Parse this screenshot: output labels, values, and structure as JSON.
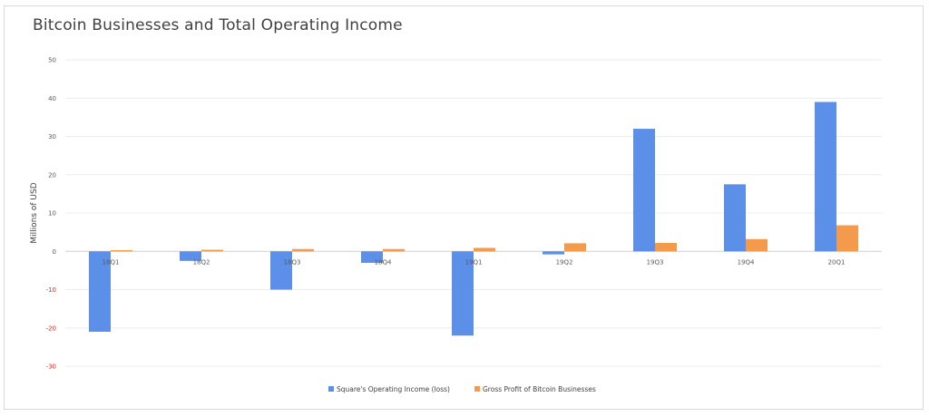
{
  "chart_data": {
    "type": "bar",
    "title": "Bitcoin Businesses and Total Operating Income",
    "xlabel": "",
    "ylabel": "Millions of USD",
    "ylim": [
      -30,
      50
    ],
    "yticks": [
      50,
      40,
      30,
      20,
      10,
      0,
      -10,
      -20,
      -30
    ],
    "grid": true,
    "legend_position": "bottom",
    "categories": [
      "18Q1",
      "18Q2",
      "18Q3",
      "18Q4",
      "19Q1",
      "19Q2",
      "19Q3",
      "19Q4",
      "20Q1"
    ],
    "series": [
      {
        "name": "Square's Operating Income (loss)",
        "color": "#5b8fe8",
        "values": [
          -21,
          -2.5,
          -10,
          -3,
          -22,
          -0.8,
          32,
          17.5,
          39
        ]
      },
      {
        "name": "Gross Profit of Bitcoin Businesses",
        "color": "#f39a4c",
        "values": [
          0.3,
          0.4,
          0.6,
          0.6,
          0.9,
          2.1,
          2.2,
          3.2,
          6.8
        ]
      }
    ]
  }
}
